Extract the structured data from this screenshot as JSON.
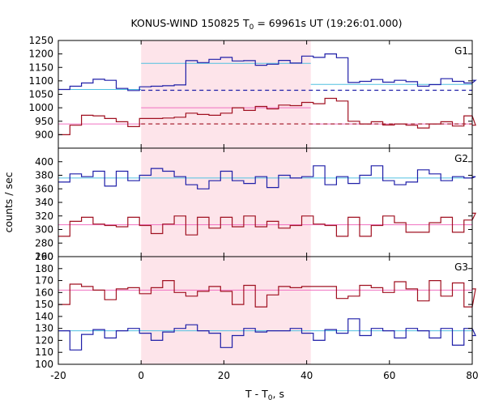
{
  "chart_data": {
    "type": "line",
    "title": "KONUS-WIND 150825 T",
    "title_sub": "0",
    "title_rest": " = 69961s UT (19:26:01.000)",
    "xlabel": "T - T",
    "xlabel_sub": "0",
    "xlabel_rest": ", s",
    "ylabel": "counts / sec",
    "xlim": [
      -20,
      80
    ],
    "xticks": [
      -20,
      0,
      20,
      40,
      60,
      80
    ],
    "highlight_region": [
      0,
      41
    ],
    "colors": {
      "blue": "#1f1fa8",
      "red": "#a01020",
      "cyan": "#50c0e0",
      "pink": "#f070c0",
      "shade": "#fde4ea"
    },
    "panels": [
      {
        "label": "G1",
        "ylim": [
          850,
          1250
        ],
        "yticks": [
          900,
          950,
          1000,
          1050,
          1100,
          1150,
          1200,
          1250
        ],
        "series": [
          {
            "color": "blue",
            "x0": -20,
            "dx": 2.8,
            "values": [
              1068,
              1080,
              1092,
              1106,
              1102,
              1072,
              1064,
              1078,
              1080,
              1082,
              1085,
              1175,
              1168,
              1180,
              1187,
              1174,
              1175,
              1158,
              1162,
              1176,
              1166,
              1192,
              1187,
              1200,
              1186,
              1094,
              1098,
              1105,
              1095,
              1102,
              1097,
              1080,
              1086,
              1108,
              1098,
              1092,
              1102
            ]
          },
          {
            "color": "red",
            "x0": -20,
            "dx": 2.8,
            "values": [
              900,
              935,
              972,
              970,
              960,
              948,
              930,
              960,
              960,
              962,
              965,
              980,
              975,
              972,
              980,
              1000,
              990,
              1005,
              996,
              1010,
              1008,
              1020,
              1015,
              1035,
              1025,
              950,
              940,
              948,
              936,
              940,
              935,
              925,
              940,
              948,
              932,
              970,
              935
            ]
          }
        ],
        "fits": [
          {
            "color": "cyan",
            "segments": [
              [
                -20,
                0,
                1068
              ],
              [
                0,
                41,
                1165
              ],
              [
                41,
                80,
                1087
              ]
            ]
          },
          {
            "color": "pink",
            "segments": [
              [
                -20,
                0,
                940
              ],
              [
                0,
                41,
                1000
              ],
              [
                41,
                80,
                940
              ]
            ]
          }
        ],
        "dashed": [
          {
            "color": "blue",
            "from": 0,
            "to": 80,
            "value": 1065
          },
          {
            "color": "red",
            "from": 0,
            "to": 80,
            "value": 940
          }
        ]
      },
      {
        "label": "G2",
        "ylim": [
          260,
          420
        ],
        "yticks": [
          260,
          280,
          300,
          320,
          340,
          360,
          380,
          400
        ],
        "series": [
          {
            "color": "blue",
            "x0": -20,
            "dx": 2.8,
            "values": [
              370,
              382,
              378,
              386,
              364,
              386,
              372,
              380,
              390,
              386,
              378,
              366,
              360,
              372,
              386,
              372,
              368,
              378,
              362,
              380,
              376,
              378,
              394,
              366,
              378,
              368,
              380,
              394,
              372,
              366,
              370,
              388,
              382,
              372,
              378,
              376,
              378
            ]
          },
          {
            "color": "red",
            "x0": -20,
            "dx": 2.8,
            "values": [
              290,
              312,
              318,
              308,
              306,
              304,
              318,
              306,
              294,
              308,
              320,
              292,
              318,
              302,
              318,
              304,
              320,
              304,
              312,
              302,
              306,
              320,
              308,
              306,
              290,
              318,
              290,
              306,
              320,
              310,
              296,
              296,
              310,
              318,
              296,
              314,
              324
            ]
          }
        ],
        "fits": [
          {
            "color": "cyan",
            "segments": [
              [
                -20,
                80,
                376
              ]
            ]
          },
          {
            "color": "pink",
            "segments": [
              [
                -20,
                80,
                307
              ]
            ]
          }
        ]
      },
      {
        "label": "G3",
        "ylim": [
          100,
          190
        ],
        "yticks": [
          100,
          110,
          120,
          130,
          140,
          150,
          160,
          170,
          180,
          190
        ],
        "series": [
          {
            "color": "red",
            "x0": -20,
            "dx": 2.8,
            "values": [
              150,
              167,
              165,
              162,
              154,
              163,
              164,
              159,
              164,
              170,
              160,
              157,
              161,
              165,
              161,
              150,
              166,
              148,
              158,
              165,
              164,
              165,
              165,
              165,
              155,
              157,
              166,
              164,
              160,
              169,
              163,
              153,
              170,
              157,
              168,
              148,
              163
            ]
          },
          {
            "color": "blue",
            "x0": -20,
            "dx": 2.8,
            "values": [
              128,
              112,
              125,
              129,
              122,
              128,
              130,
              126,
              120,
              127,
              130,
              133,
              128,
              126,
              114,
              124,
              130,
              127,
              128,
              128,
              130,
              126,
              120,
              129,
              126,
              138,
              124,
              130,
              128,
              122,
              130,
              128,
              122,
              130,
              116,
              130,
              124
            ]
          }
        ],
        "fits": [
          {
            "color": "pink",
            "segments": [
              [
                -20,
                80,
                162
              ]
            ]
          },
          {
            "color": "cyan",
            "segments": [
              [
                -20,
                80,
                128
              ]
            ]
          }
        ]
      }
    ]
  }
}
